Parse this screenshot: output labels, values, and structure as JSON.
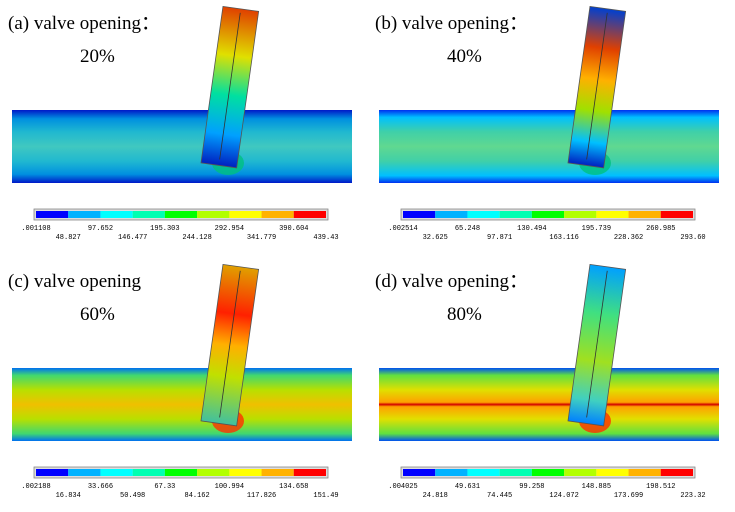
{
  "panels": [
    {
      "label": "(a) valve opening：",
      "opening": "20%",
      "legend_labels": [
        ".001108",
        "48.827",
        "97.652",
        "146.477",
        "195.303",
        "244.128",
        "292.954",
        "341.779",
        "390.604",
        "439.43"
      ]
    },
    {
      "label": "(b) valve opening：",
      "opening": "40%",
      "legend_labels": [
        ".002514",
        "32.625",
        "65.248",
        "97.871",
        "130.494",
        "163.116",
        "195.739",
        "228.362",
        "260.985",
        "293.60"
      ]
    },
    {
      "label": "(c) valve opening",
      "opening": "60%",
      "legend_labels": [
        ".002188",
        "16.834",
        "33.666",
        "50.498",
        "67.33",
        "84.162",
        "100.994",
        "117.826",
        "134.658",
        "151.49"
      ]
    },
    {
      "label": "(d) valve opening：",
      "opening": "80%",
      "legend_labels": [
        ".004025",
        "24.818",
        "49.631",
        "74.445",
        "99.258",
        "124.072",
        "148.885",
        "173.699",
        "198.512",
        "223.32"
      ]
    }
  ]
}
